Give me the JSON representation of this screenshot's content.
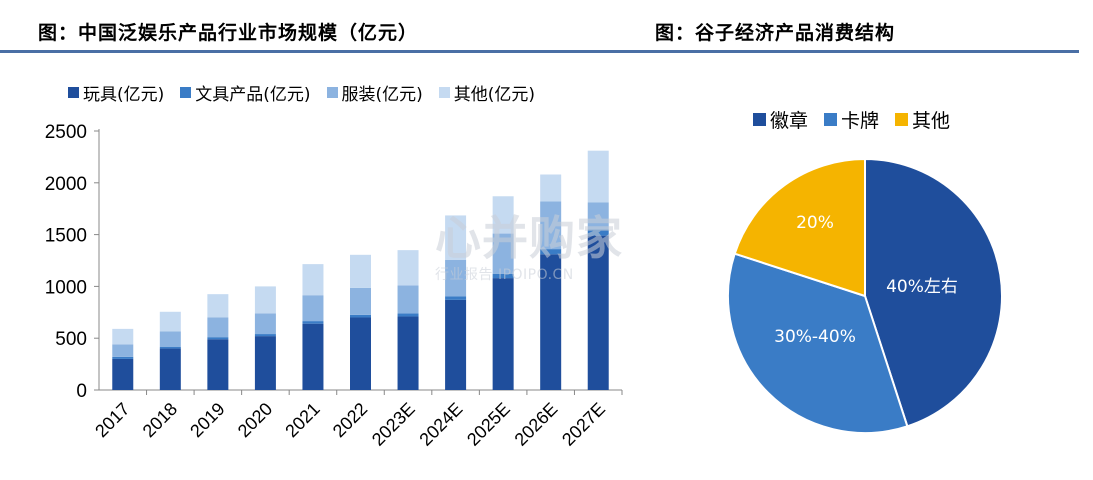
{
  "titles": {
    "left": "图：中国泛娱乐产品行业市场规模（亿元）",
    "right": "图：谷子经济产品消费结构"
  },
  "watermark": {
    "main": "心并购家",
    "sub": "行业报告 IPOIPO.CN"
  },
  "chart_data": [
    {
      "type": "bar",
      "stacked": true,
      "categories": [
        "2017",
        "2018",
        "2019",
        "2020",
        "2021",
        "2022",
        "2023E",
        "2024E",
        "2025E",
        "2026E",
        "2027E"
      ],
      "series": [
        {
          "name": "玩具(亿元)",
          "color": "#1f4e9c",
          "values": [
            300,
            400,
            490,
            520,
            640,
            700,
            710,
            870,
            1080,
            1310,
            1490
          ]
        },
        {
          "name": "文具产品(亿元)",
          "color": "#3a7cc6",
          "values": [
            20,
            15,
            20,
            20,
            25,
            25,
            30,
            35,
            40,
            50,
            60
          ]
        },
        {
          "name": "服装(亿元)",
          "color": "#8cb3e0",
          "values": [
            120,
            150,
            190,
            200,
            250,
            260,
            270,
            350,
            390,
            460,
            260
          ]
        },
        {
          "name": "其他(亿元)",
          "color": "#c5daf1",
          "values": [
            150,
            190,
            225,
            260,
            300,
            320,
            340,
            430,
            360,
            260,
            500
          ]
        }
      ],
      "yticks": [
        0,
        500,
        1000,
        1500,
        2000,
        2500
      ],
      "ylim": [
        0,
        2500
      ],
      "legend_position": "top"
    },
    {
      "type": "pie",
      "slices": [
        {
          "name": "徽章",
          "label": "40%左右",
          "value": 45,
          "color": "#1f4e9c"
        },
        {
          "name": "卡牌",
          "label": "30%-40%",
          "value": 35,
          "color": "#3a7cc6"
        },
        {
          "name": "其他",
          "label": "20%",
          "value": 20,
          "color": "#f5b400"
        }
      ],
      "legend_position": "top"
    }
  ]
}
